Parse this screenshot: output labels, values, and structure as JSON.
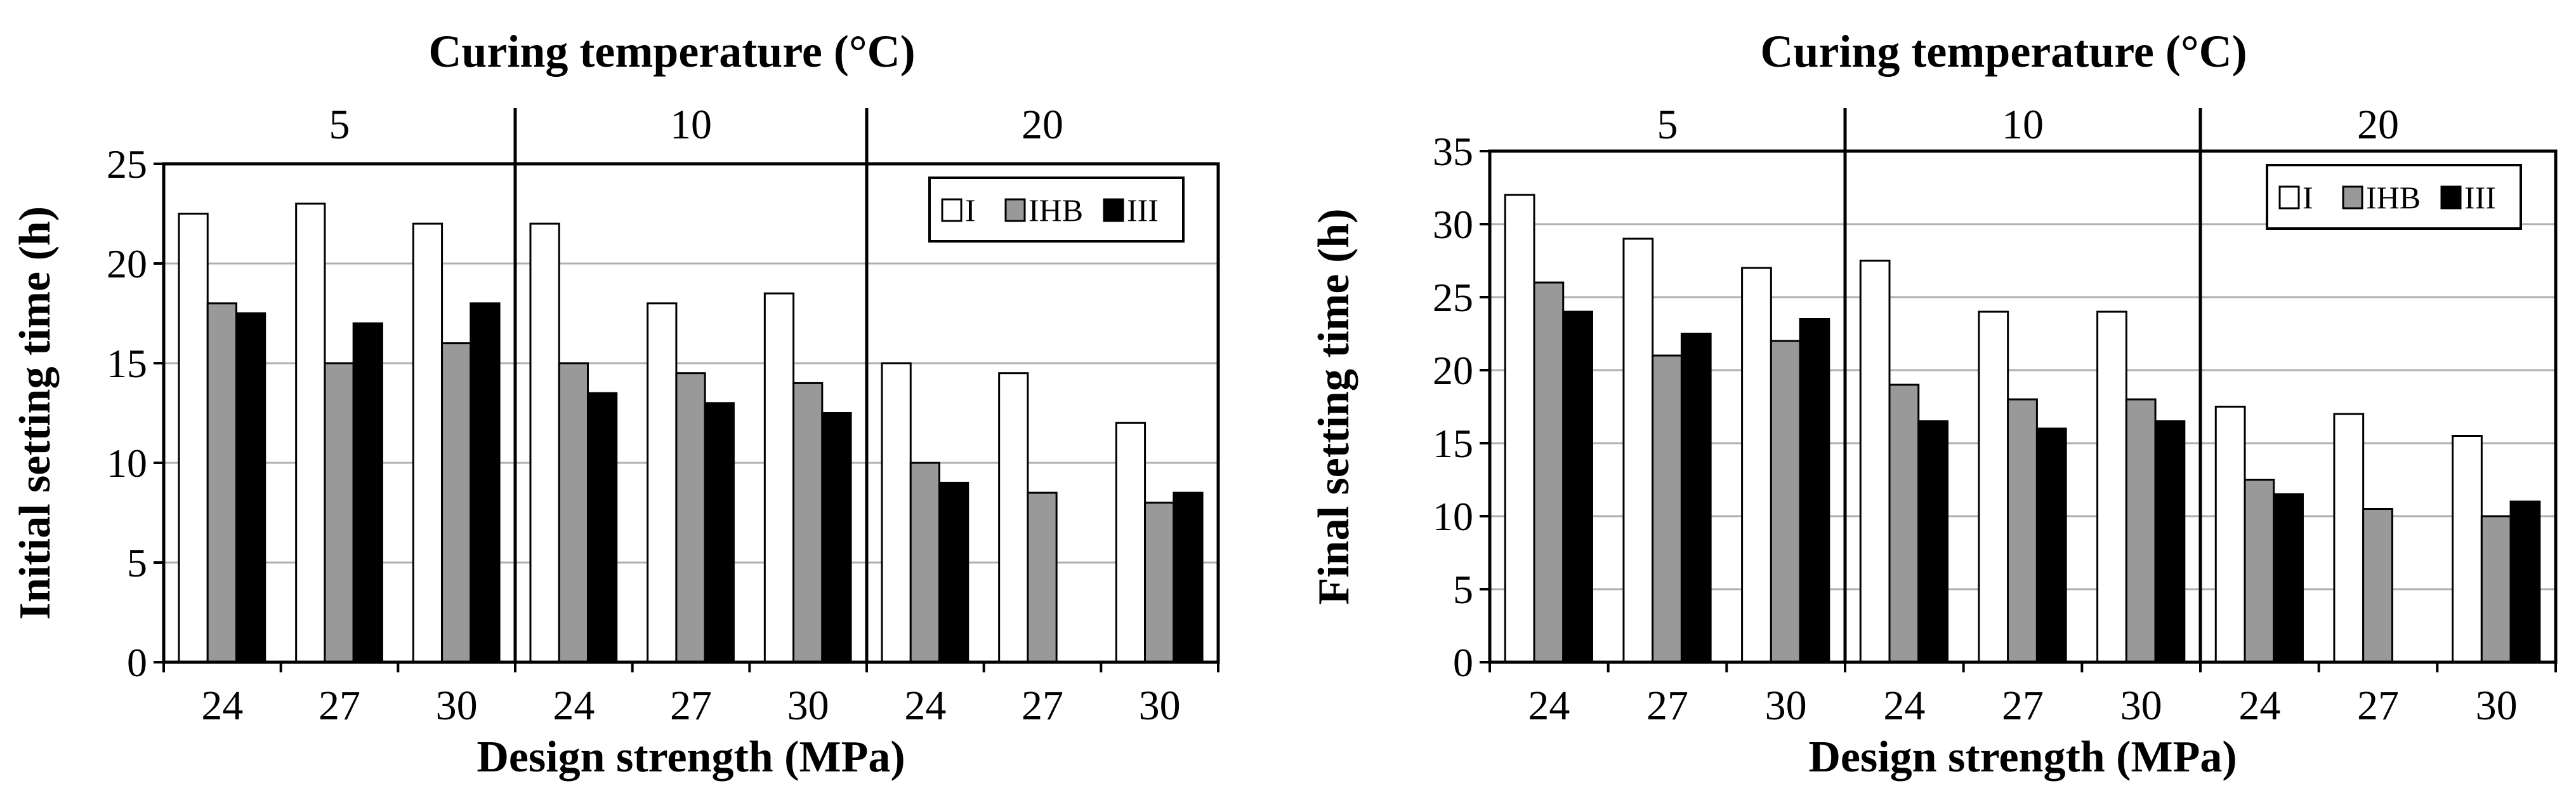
{
  "series_colors": {
    "I": "#ffffff",
    "IHB": "#999999",
    "III": "#000000"
  },
  "chart_data": [
    {
      "type": "bar",
      "title": "Curing temperature (°C)",
      "group_labels": [
        "5",
        "10",
        "20"
      ],
      "categories": [
        "24",
        "27",
        "30",
        "24",
        "27",
        "30",
        "24",
        "27",
        "30"
      ],
      "xlabel": "Design strength (MPa)",
      "ylabel": "Initial setting time (h)",
      "ylim": [
        0,
        25
      ],
      "yticks": [
        "0",
        "5",
        "10",
        "15",
        "20",
        "25"
      ],
      "legend_position": "top-right",
      "series": [
        {
          "name": "I",
          "values": [
            22.5,
            23,
            22,
            22,
            18,
            18.5,
            15,
            14.5,
            12
          ]
        },
        {
          "name": "IHB",
          "values": [
            18,
            15,
            16,
            15,
            14.5,
            14,
            10,
            8.5,
            8
          ]
        },
        {
          "name": "III",
          "values": [
            17.5,
            17,
            18,
            13.5,
            13,
            12.5,
            9,
            null,
            8.5
          ]
        }
      ]
    },
    {
      "type": "bar",
      "title": "Curing temperature (°C)",
      "group_labels": [
        "5",
        "10",
        "20"
      ],
      "categories": [
        "24",
        "27",
        "30",
        "24",
        "27",
        "30",
        "24",
        "27",
        "30"
      ],
      "xlabel": "Design strength (MPa)",
      "ylabel": "Final setting time (h)",
      "ylim": [
        0,
        35
      ],
      "yticks": [
        "0",
        "5",
        "10",
        "15",
        "20",
        "25",
        "30",
        "35"
      ],
      "legend_position": "top-right",
      "series": [
        {
          "name": "I",
          "values": [
            32,
            29,
            27,
            27.5,
            24,
            24,
            17.5,
            17,
            15.5
          ]
        },
        {
          "name": "IHB",
          "values": [
            26,
            21,
            22,
            19,
            18,
            18,
            12.5,
            10.5,
            10
          ]
        },
        {
          "name": "III",
          "values": [
            24,
            22.5,
            23.5,
            16.5,
            16,
            16.5,
            11.5,
            null,
            11
          ]
        }
      ]
    }
  ]
}
